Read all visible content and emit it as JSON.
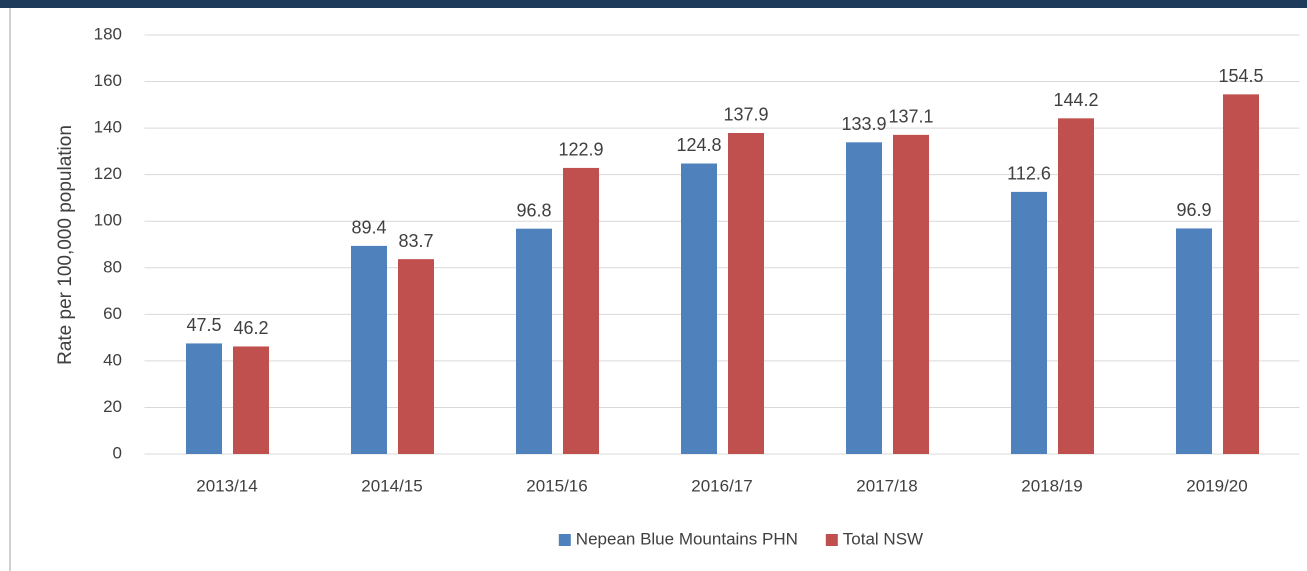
{
  "chart_data": {
    "type": "bar",
    "categories": [
      "2013/14",
      "2014/15",
      "2015/16",
      "2016/17",
      "2017/18",
      "2018/19",
      "2019/20"
    ],
    "series": [
      {
        "name": "Nepean Blue Mountains PHN",
        "color": "#4f81bd",
        "values": [
          47.5,
          89.4,
          96.8,
          124.8,
          133.9,
          112.6,
          96.9
        ]
      },
      {
        "name": "Total NSW",
        "color": "#c0504d",
        "values": [
          46.2,
          83.7,
          122.9,
          137.9,
          137.1,
          144.2,
          154.5
        ]
      }
    ],
    "y_label": "Rate per 100,000 population",
    "ylim": [
      0,
      180
    ],
    "yticks": [
      0,
      20,
      40,
      60,
      80,
      100,
      120,
      140,
      160,
      180
    ],
    "grid": true,
    "legend": "bottom"
  }
}
